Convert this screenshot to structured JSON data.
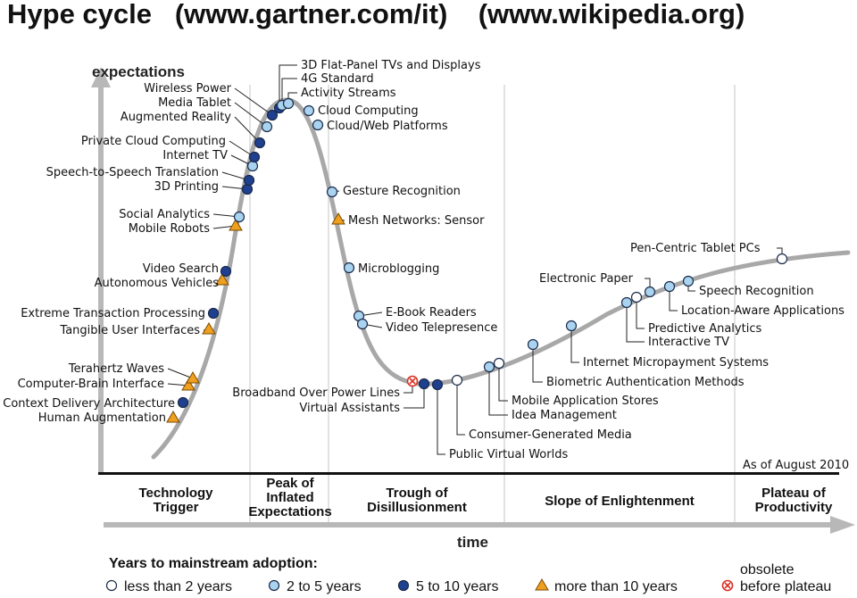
{
  "title": "Hype cycle   (www.gartner.com/it)    (www.wikipedia.org)",
  "axes": {
    "y_label": "expectations",
    "x_label": "time"
  },
  "as_of": "As of August 2010",
  "phases": [
    [
      "Technology",
      "Trigger"
    ],
    [
      "Peak of",
      "Inflated",
      "Expectations"
    ],
    [
      "Trough of",
      "Disillusionment"
    ],
    [
      "Slope of Enlightenment"
    ],
    [
      "Plateau of",
      "Productivity"
    ]
  ],
  "legend": {
    "title": "Years to mainstream adoption:",
    "items": [
      {
        "key": "lt2",
        "label": "less than 2 years"
      },
      {
        "key": "2to5",
        "label": "2 to 5 years"
      },
      {
        "key": "5to10",
        "label": "5 to 10 years"
      },
      {
        "key": "gt10",
        "label": "more than 10 years"
      },
      {
        "key": "obs",
        "label_top": "obsolete",
        "label": "before plateau"
      }
    ]
  },
  "marker_colors": {
    "lt2": "#ffffff",
    "2to5": "#a9d3ef",
    "5to10": "#1f3f8f",
    "gt10": "#f0a020",
    "obs": "#ffffff",
    "obs_x": "#d93025"
  },
  "technologies": [
    {
      "name": "Human Augmentation",
      "cat": "gt10"
    },
    {
      "name": "Context Delivery Architecture",
      "cat": "5to10"
    },
    {
      "name": "Computer-Brain Interface",
      "cat": "gt10"
    },
    {
      "name": "Terahertz Waves",
      "cat": "gt10"
    },
    {
      "name": "Tangible User Interfaces",
      "cat": "gt10"
    },
    {
      "name": "Extreme Transaction Processing",
      "cat": "5to10"
    },
    {
      "name": "Autonomous Vehicles",
      "cat": "gt10"
    },
    {
      "name": "Video Search",
      "cat": "5to10"
    },
    {
      "name": "Mobile Robots",
      "cat": "gt10"
    },
    {
      "name": "Social Analytics",
      "cat": "2to5"
    },
    {
      "name": "3D Printing",
      "cat": "5to10"
    },
    {
      "name": "Speech-to-Speech Translation",
      "cat": "5to10"
    },
    {
      "name": "Internet TV",
      "cat": "2to5"
    },
    {
      "name": "Private Cloud Computing",
      "cat": "5to10"
    },
    {
      "name": "Augmented Reality",
      "cat": "5to10"
    },
    {
      "name": "Media Tablet",
      "cat": "2to5"
    },
    {
      "name": "Wireless Power",
      "cat": "5to10"
    },
    {
      "name": "3D Flat-Panel TVs and Displays",
      "cat": "5to10"
    },
    {
      "name": "4G Standard",
      "cat": "2to5"
    },
    {
      "name": "Activity Streams",
      "cat": "2to5"
    },
    {
      "name": "Cloud Computing",
      "cat": "2to5"
    },
    {
      "name": "Cloud/Web Platforms",
      "cat": "2to5"
    },
    {
      "name": "Gesture Recognition",
      "cat": "2to5"
    },
    {
      "name": "Mesh Networks: Sensor",
      "cat": "gt10"
    },
    {
      "name": "Microblogging",
      "cat": "2to5"
    },
    {
      "name": "E-Book Readers",
      "cat": "2to5"
    },
    {
      "name": "Video Telepresence",
      "cat": "2to5"
    },
    {
      "name": "Broadband Over Power Lines",
      "cat": "obs"
    },
    {
      "name": "Virtual Assistants",
      "cat": "5to10"
    },
    {
      "name": "Public Virtual Worlds",
      "cat": "5to10"
    },
    {
      "name": "Consumer-Generated Media",
      "cat": "lt2"
    },
    {
      "name": "Idea Management",
      "cat": "2to5"
    },
    {
      "name": "Mobile Application Stores",
      "cat": "lt2"
    },
    {
      "name": "Biometric Authentication Methods",
      "cat": "2to5"
    },
    {
      "name": "Internet Micropayment Systems",
      "cat": "2to5"
    },
    {
      "name": "Interactive TV",
      "cat": "2to5"
    },
    {
      "name": "Predictive Analytics",
      "cat": "lt2"
    },
    {
      "name": "Electronic Paper",
      "cat": "2to5"
    },
    {
      "name": "Location-Aware Applications",
      "cat": "2to5"
    },
    {
      "name": "Speech Recognition",
      "cat": "2to5"
    },
    {
      "name": "Pen-Centric Tablet PCs",
      "cat": "lt2"
    }
  ]
}
